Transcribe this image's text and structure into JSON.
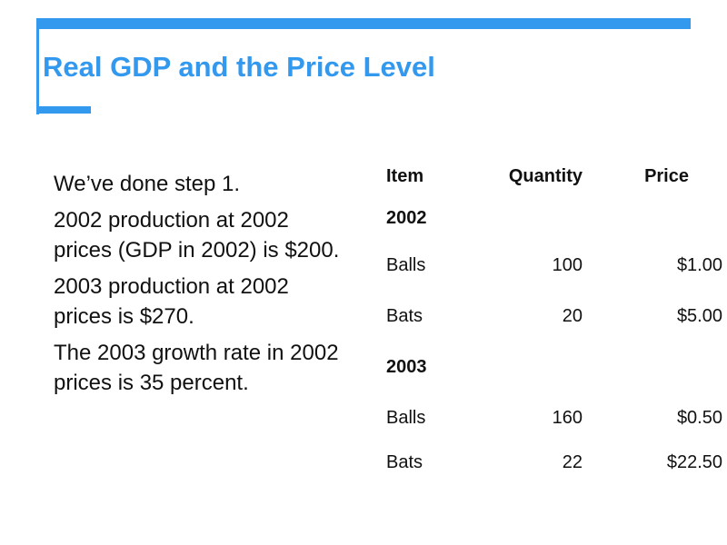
{
  "slide": {
    "title": "Real GDP and the Price Level",
    "accent_color": "#3399ee",
    "bullets": [
      "We’ve done step 1.",
      "2002 production at 2002 prices (GDP in 2002) is $200.",
      "2003 production at 2002 prices is $270.",
      "The 2003 growth rate in 2002 prices is 35 percent."
    ]
  },
  "table": {
    "headers": {
      "item": "Item",
      "quantity": "Quantity",
      "price": "Price"
    },
    "groups": [
      {
        "year": "2002",
        "rows": [
          {
            "item": "Balls",
            "quantity": "100",
            "price": "$1.00"
          },
          {
            "item": "Bats",
            "quantity": "20",
            "price": "$5.00"
          }
        ]
      },
      {
        "year": "2003",
        "rows": [
          {
            "item": "Balls",
            "quantity": "160",
            "price": "$0.50"
          },
          {
            "item": "Bats",
            "quantity": "22",
            "price": "$22.50"
          }
        ]
      }
    ]
  }
}
